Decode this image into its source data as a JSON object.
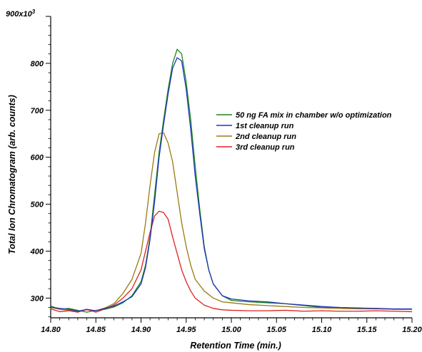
{
  "chart_data": {
    "type": "line",
    "xlabel": "Retention Time (min.)",
    "ylabel": "Total Ion Chromatogram  (arb. counts)",
    "y_unit_label": "900x10",
    "y_unit_exponent": "3",
    "xlim": [
      14.8,
      15.2
    ],
    "ylim": [
      258,
      900
    ],
    "x_ticks": [
      "14.80",
      "14.85",
      "14.90",
      "14.95",
      "15.00",
      "15.05",
      "15.10",
      "15.15",
      "15.20"
    ],
    "y_ticks": [
      "300",
      "400",
      "500",
      "600",
      "700",
      "800"
    ],
    "legend_position": "right",
    "grid": false,
    "series": [
      {
        "name": "50 ng FA mix in chamber  w/o optimization",
        "color": "#1a8a1a",
        "x": [
          14.8,
          14.81,
          14.82,
          14.83,
          14.84,
          14.85,
          14.86,
          14.87,
          14.88,
          14.89,
          14.9,
          14.905,
          14.91,
          14.915,
          14.92,
          14.925,
          14.93,
          14.935,
          14.94,
          14.945,
          14.95,
          14.955,
          14.96,
          14.965,
          14.97,
          14.975,
          14.98,
          14.99,
          15.0,
          15.02,
          15.04,
          15.06,
          15.08,
          15.1,
          15.12,
          15.14,
          15.16,
          15.18,
          15.2
        ],
        "y": [
          283,
          276,
          278,
          274,
          270,
          274,
          276,
          281,
          290,
          305,
          335,
          370,
          430,
          520,
          610,
          680,
          745,
          800,
          830,
          820,
          760,
          680,
          580,
          490,
          410,
          360,
          330,
          305,
          295,
          292,
          290,
          288,
          284,
          280,
          280,
          278,
          278,
          276,
          276
        ]
      },
      {
        "name": "1st cleanup run",
        "color": "#2233bb",
        "x": [
          14.8,
          14.81,
          14.82,
          14.83,
          14.84,
          14.85,
          14.86,
          14.87,
          14.88,
          14.89,
          14.9,
          14.905,
          14.91,
          14.915,
          14.92,
          14.925,
          14.93,
          14.935,
          14.94,
          14.945,
          14.95,
          14.955,
          14.96,
          14.965,
          14.97,
          14.975,
          14.98,
          14.99,
          15.0,
          15.02,
          15.04,
          15.06,
          15.08,
          15.1,
          15.12,
          15.14,
          15.16,
          15.18,
          15.2
        ],
        "y": [
          281,
          278,
          276,
          272,
          276,
          273,
          278,
          283,
          292,
          303,
          330,
          365,
          425,
          505,
          600,
          670,
          735,
          790,
          812,
          805,
          745,
          660,
          560,
          480,
          405,
          360,
          330,
          305,
          298,
          294,
          292,
          288,
          285,
          282,
          280,
          279,
          278,
          277,
          277
        ]
      },
      {
        "name": "2nd cleanup run",
        "color": "#9a7a10",
        "x": [
          14.8,
          14.81,
          14.82,
          14.83,
          14.84,
          14.85,
          14.86,
          14.87,
          14.88,
          14.89,
          14.9,
          14.905,
          14.91,
          14.915,
          14.92,
          14.925,
          14.93,
          14.935,
          14.94,
          14.945,
          14.95,
          14.955,
          14.96,
          14.97,
          14.98,
          14.99,
          15.0,
          15.02,
          15.04,
          15.06,
          15.08,
          15.1,
          15.12,
          15.14,
          15.16,
          15.18,
          15.2
        ],
        "y": [
          280,
          276,
          274,
          272,
          275,
          273,
          279,
          288,
          310,
          340,
          395,
          460,
          540,
          610,
          650,
          652,
          630,
          590,
          525,
          460,
          410,
          370,
          340,
          315,
          300,
          292,
          290,
          286,
          284,
          282,
          280,
          279,
          278,
          277,
          277,
          276,
          276
        ]
      },
      {
        "name": "3rd cleanup run",
        "color": "#dd2222",
        "x": [
          14.8,
          14.81,
          14.82,
          14.83,
          14.84,
          14.85,
          14.86,
          14.87,
          14.88,
          14.89,
          14.9,
          14.905,
          14.91,
          14.915,
          14.92,
          14.925,
          14.93,
          14.935,
          14.94,
          14.945,
          14.95,
          14.955,
          14.96,
          14.97,
          14.98,
          14.99,
          15.0,
          15.02,
          15.04,
          15.06,
          15.08,
          15.1,
          15.12,
          15.14,
          15.16,
          15.18,
          15.2
        ],
        "y": [
          277,
          271,
          273,
          270,
          276,
          270,
          277,
          285,
          300,
          320,
          360,
          400,
          440,
          475,
          485,
          482,
          468,
          430,
          395,
          360,
          335,
          315,
          300,
          285,
          278,
          275,
          274,
          273,
          273,
          274,
          272,
          273,
          272,
          272,
          273,
          272,
          271
        ]
      }
    ]
  }
}
